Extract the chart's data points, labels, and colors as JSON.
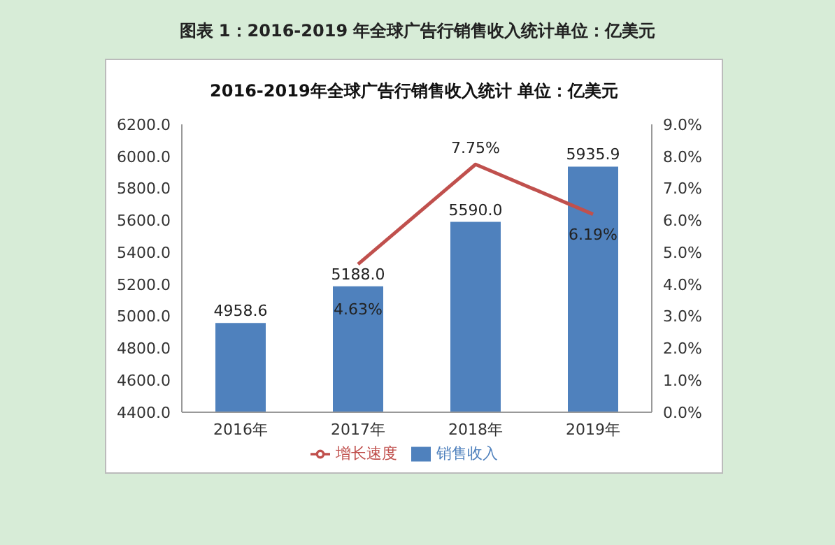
{
  "chart_data": {
    "type": "bar",
    "title": "图表 1：2016-2019 年全球广告行销售收入统计单位：亿美元",
    "subtitle": "2016-2019年全球广告行销售收入统计 单位：亿美元",
    "categories": [
      "2016年",
      "2017年",
      "2018年",
      "2019年"
    ],
    "series": [
      {
        "name": "销售收入",
        "color": "#4f81bd",
        "values": [
          4958.6,
          5188.0,
          5590.0,
          5935.9
        ],
        "value_labels": [
          "4958.6",
          "5188.0",
          "5590.0",
          "5935.9"
        ]
      },
      {
        "name": "增长速度",
        "type": "line",
        "axis": "y2",
        "color": "#c0504d",
        "marker": "none",
        "values": [
          null,
          4.63,
          7.75,
          6.19
        ],
        "value_labels": [
          null,
          "4.63%",
          "7.75%",
          "6.19%"
        ]
      }
    ],
    "ylim": [
      4400,
      6200
    ],
    "yticks": [
      {
        "value": 4400,
        "label": "4400.0"
      },
      {
        "value": 4600,
        "label": "4600.0"
      },
      {
        "value": 4800,
        "label": "4800.0"
      },
      {
        "value": 5000,
        "label": "5000.0"
      },
      {
        "value": 5200,
        "label": "5200.0"
      },
      {
        "value": 5400,
        "label": "5400.0"
      },
      {
        "value": 5600,
        "label": "5600.0"
      },
      {
        "value": 5800,
        "label": "5800.0"
      },
      {
        "value": 6000,
        "label": "6000.0"
      },
      {
        "value": 6200,
        "label": "6200.0"
      }
    ],
    "y2lim": [
      0,
      9
    ],
    "y2ticks": [
      {
        "value": 0,
        "label": "0.0%"
      },
      {
        "value": 1,
        "label": "1.0%"
      },
      {
        "value": 2,
        "label": "2.0%"
      },
      {
        "value": 3,
        "label": "3.0%"
      },
      {
        "value": 4,
        "label": "4.0%"
      },
      {
        "value": 5,
        "label": "5.0%"
      },
      {
        "value": 6,
        "label": "6.0%"
      },
      {
        "value": 7,
        "label": "7.0%"
      },
      {
        "value": 8,
        "label": "8.0%"
      },
      {
        "value": 9,
        "label": "9.0%"
      }
    ],
    "legend": "bottom"
  }
}
